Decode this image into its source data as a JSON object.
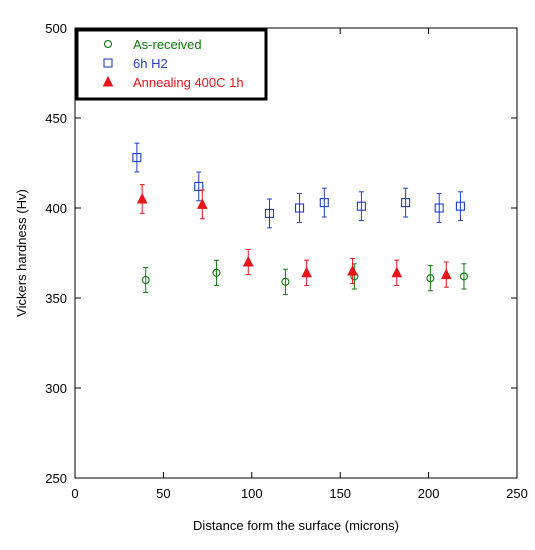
{
  "chart_data": {
    "type": "scatter",
    "title": "",
    "xlabel": "Distance form the surface (microns)",
    "ylabel": "Vickers hardness (Hv)",
    "xlim": [
      0,
      250
    ],
    "ylim": [
      250,
      500
    ],
    "xticks": [
      0,
      50,
      100,
      150,
      200,
      250
    ],
    "yticks": [
      250,
      300,
      350,
      400,
      450,
      500
    ],
    "grid": false,
    "legend_position": "top-left",
    "series": [
      {
        "name": "As-received",
        "marker": "open-circle",
        "color": "#0a7a0a",
        "points": [
          {
            "x": 40,
            "y": 360,
            "err": 7
          },
          {
            "x": 80,
            "y": 364,
            "err": 7
          },
          {
            "x": 119,
            "y": 359,
            "err": 7
          },
          {
            "x": 158,
            "y": 362,
            "err": 7
          },
          {
            "x": 201,
            "y": 361,
            "err": 7
          },
          {
            "x": 220,
            "y": 362,
            "err": 7
          }
        ]
      },
      {
        "name": "6h H2",
        "marker": "open-square",
        "color": "#1f3fc9",
        "points": [
          {
            "x": 35,
            "y": 428,
            "err": 8
          },
          {
            "x": 70,
            "y": 412,
            "err": 8
          },
          {
            "x": 110,
            "y": 397,
            "err": 8
          },
          {
            "x": 127,
            "y": 400,
            "err": 8
          },
          {
            "x": 141,
            "y": 403,
            "err": 8
          },
          {
            "x": 162,
            "y": 401,
            "err": 8
          },
          {
            "x": 187,
            "y": 403,
            "err": 8
          },
          {
            "x": 206,
            "y": 400,
            "err": 8
          },
          {
            "x": 218,
            "y": 401,
            "err": 8
          }
        ]
      },
      {
        "name": "Annealing 400C 1h",
        "marker": "filled-triangle",
        "color": "#e8141a",
        "points": [
          {
            "x": 38,
            "y": 405,
            "err": 8
          },
          {
            "x": 72,
            "y": 402,
            "err": 8
          },
          {
            "x": 98,
            "y": 370,
            "err": 7
          },
          {
            "x": 131,
            "y": 364,
            "err": 7
          },
          {
            "x": 157,
            "y": 365,
            "err": 7
          },
          {
            "x": 182,
            "y": 364,
            "err": 7
          },
          {
            "x": 210,
            "y": 363,
            "err": 7
          }
        ]
      }
    ]
  }
}
